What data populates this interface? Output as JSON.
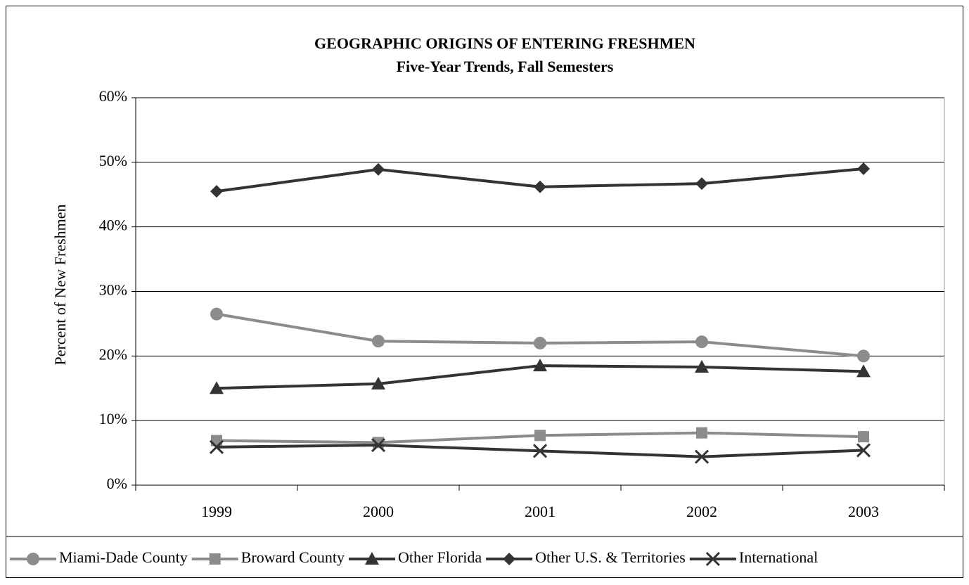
{
  "chart_data": {
    "type": "line",
    "title": "GEOGRAPHIC ORIGINS OF ENTERING FRESHMEN",
    "subtitle": "Five-Year Trends, Fall Semesters",
    "ylabel": "Percent of New Freshmen",
    "categories": [
      "1999",
      "2000",
      "2001",
      "2002",
      "2003"
    ],
    "series": [
      {
        "name": "Miami-Dade County",
        "color": "#8c8c8c",
        "marker": "circle",
        "values": [
          26.5,
          22.3,
          22.0,
          22.2,
          20.0
        ]
      },
      {
        "name": "Broward County",
        "color": "#8c8c8c",
        "marker": "square",
        "values": [
          6.9,
          6.6,
          7.7,
          8.1,
          7.5
        ]
      },
      {
        "name": "Other Florida",
        "color": "#333333",
        "marker": "triangle",
        "values": [
          15.0,
          15.7,
          18.5,
          18.3,
          17.6
        ]
      },
      {
        "name": "Other U.S. & Territories",
        "color": "#333333",
        "marker": "diamond",
        "values": [
          45.5,
          48.9,
          46.2,
          46.7,
          49.0
        ]
      },
      {
        "name": "International",
        "color": "#333333",
        "marker": "x",
        "values": [
          5.9,
          6.2,
          5.3,
          4.4,
          5.4
        ]
      }
    ],
    "ylim": [
      0,
      60
    ],
    "yticks": [
      {
        "value": 0,
        "label": "0%"
      },
      {
        "value": 10,
        "label": "10%"
      },
      {
        "value": 20,
        "label": "20%"
      },
      {
        "value": 30,
        "label": "30%"
      },
      {
        "value": 40,
        "label": "40%"
      },
      {
        "value": 50,
        "label": "50%"
      },
      {
        "value": 60,
        "label": "60%"
      }
    ],
    "grid": true,
    "legend": "bottom"
  }
}
